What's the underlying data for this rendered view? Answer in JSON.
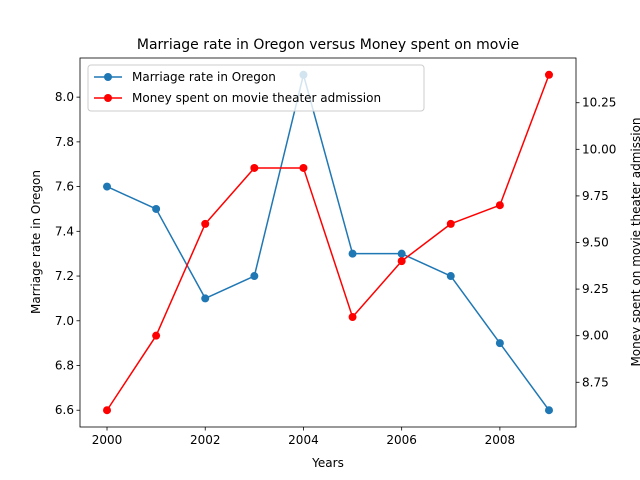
{
  "chart_data": {
    "type": "line",
    "title": "Marriage rate in Oregon versus Money spent on movie",
    "xlabel": "Years",
    "ylabel_left": "Marriage rate in Oregon",
    "ylabel_right": "Money spent on movie theater admission",
    "x": [
      2000,
      2001,
      2002,
      2003,
      2004,
      2005,
      2006,
      2007,
      2008,
      2009
    ],
    "x_ticks": [
      2000,
      2002,
      2004,
      2006,
      2008
    ],
    "y_left_ticks": [
      "6.6",
      "6.8",
      "7.0",
      "7.2",
      "7.4",
      "7.6",
      "7.8",
      "8.0"
    ],
    "y_right_ticks": [
      "8.75",
      "9.00",
      "9.25",
      "9.50",
      "9.75",
      "10.00",
      "10.25"
    ],
    "xlim": [
      1999.45,
      2009.55
    ],
    "ylim_left": [
      6.525,
      8.175
    ],
    "ylim_right": [
      8.51,
      10.49
    ],
    "legend_position": "upper-left",
    "grid": false,
    "series": [
      {
        "name": "Marriage rate in Oregon",
        "axis": "left",
        "color": "#1f77b4",
        "values": [
          7.6,
          7.5,
          7.1,
          7.2,
          8.1,
          7.3,
          7.3,
          7.2,
          6.9,
          6.6
        ]
      },
      {
        "name": "Money spent on movie theater admission",
        "axis": "right",
        "color": "#ff0000",
        "values": [
          8.6,
          9.0,
          9.6,
          9.9,
          9.9,
          9.1,
          9.4,
          9.6,
          9.7,
          10.4
        ]
      }
    ]
  }
}
